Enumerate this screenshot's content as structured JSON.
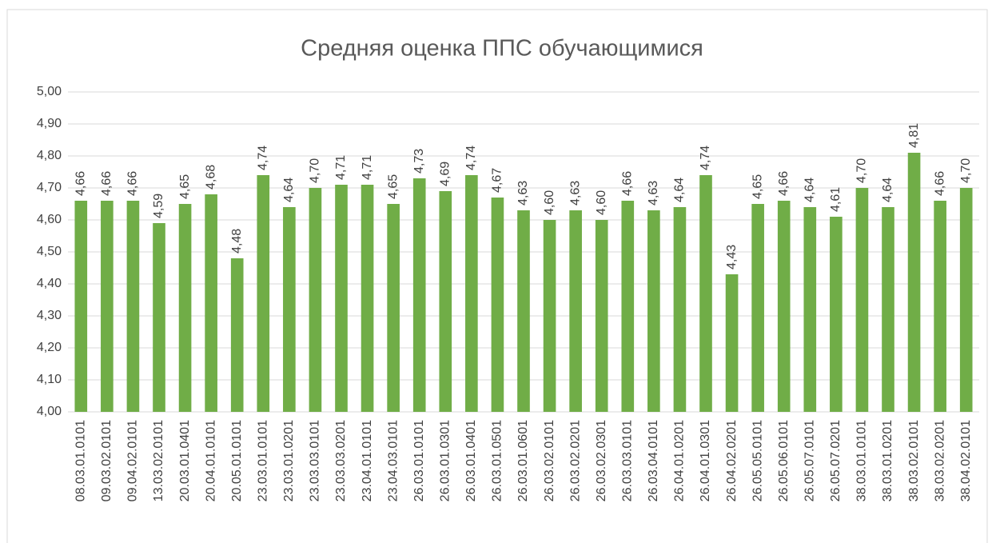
{
  "chart_data": {
    "type": "bar",
    "title": "Средняя оценка ППС обучающимися",
    "categories": [
      "08.03.01.0101",
      "09.03.02.0101",
      "09.04.02.0101",
      "13.03.02.0101",
      "20.03.01.0401",
      "20.04.01.0101",
      "20.05.01.0101",
      "23.03.01.0101",
      "23.03.01.0201",
      "23.03.03.0101",
      "23.03.03.0201",
      "23.04.01.0101",
      "23.04.03.0101",
      "26.03.01.0101",
      "26.03.01.0301",
      "26.03.01.0401",
      "26.03.01.0501",
      "26.03.01.0601",
      "26.03.02.0101",
      "26.03.02.0201",
      "26.03.02.0301",
      "26.03.03.0101",
      "26.03.04.0101",
      "26.04.01.0201",
      "26.04.01.0301",
      "26.04.02.0201",
      "26.05.05.0101",
      "26.05.06.0101",
      "26.05.07.0101",
      "26.05.07.0201",
      "38.03.01.0101",
      "38.03.01.0201",
      "38.03.02.0101",
      "38.03.02.0201",
      "38.04.02.0101"
    ],
    "values": [
      4.66,
      4.66,
      4.66,
      4.59,
      4.65,
      4.68,
      4.48,
      4.74,
      4.64,
      4.7,
      4.71,
      4.71,
      4.65,
      4.73,
      4.69,
      4.74,
      4.67,
      4.63,
      4.6,
      4.63,
      4.6,
      4.66,
      4.63,
      4.64,
      4.74,
      4.43,
      4.65,
      4.66,
      4.64,
      4.61,
      4.7,
      4.64,
      4.81,
      4.66,
      4.7
    ],
    "value_labels": [
      "4,66",
      "4,66",
      "4,66",
      "4,59",
      "4,65",
      "4,68",
      "4,48",
      "4,74",
      "4,64",
      "4,70",
      "4,71",
      "4,71",
      "4,65",
      "4,73",
      "4,69",
      "4,74",
      "4,67",
      "4,63",
      "4,60",
      "4,63",
      "4,60",
      "4,66",
      "4,63",
      "4,64",
      "4,74",
      "4,43",
      "4,65",
      "4,66",
      "4,64",
      "4,61",
      "4,70",
      "4,64",
      "4,81",
      "4,66",
      "4,70"
    ],
    "color": "#70ad47",
    "ylim": [
      4.0,
      5.0
    ],
    "yticks": [
      {
        "value": 4.0,
        "label": "4,00"
      },
      {
        "value": 4.1,
        "label": "4,10"
      },
      {
        "value": 4.2,
        "label": "4,20"
      },
      {
        "value": 4.3,
        "label": "4,30"
      },
      {
        "value": 4.4,
        "label": "4,40"
      },
      {
        "value": 4.5,
        "label": "4,50"
      },
      {
        "value": 4.6,
        "label": "4,60"
      },
      {
        "value": 4.7,
        "label": "4,70"
      },
      {
        "value": 4.8,
        "label": "4,80"
      },
      {
        "value": 4.9,
        "label": "4,90"
      },
      {
        "value": 5.0,
        "label": "5,00"
      }
    ],
    "grid": true
  }
}
